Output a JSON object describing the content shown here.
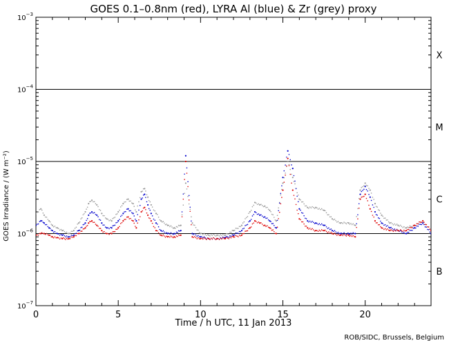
{
  "chart_data": {
    "type": "scatter",
    "title": "GOES 0.1–0.8nm (red), LYRA Al (blue) & Zr (grey) proxy",
    "xlabel": "Time / h UTC, 11 Jan 2013",
    "ylabel": "GOES Irradiance / (W m⁻²)",
    "credit": "ROB/SIDC, Brussels, Belgium",
    "xlim": [
      0,
      24
    ],
    "ylim": [
      1e-07,
      0.001
    ],
    "yscale": "log",
    "x_ticks": [
      0,
      5,
      10,
      15,
      20
    ],
    "x_tick_labels": [
      "0",
      "5",
      "10",
      "15",
      "20"
    ],
    "y_ticks": [
      1e-07,
      1e-06,
      1e-05,
      0.0001,
      0.001
    ],
    "y_tick_labels": [
      {
        "base": "10",
        "exp": "−7"
      },
      {
        "base": "10",
        "exp": "−6"
      },
      {
        "base": "10",
        "exp": "−5"
      },
      {
        "base": "10",
        "exp": "−4"
      },
      {
        "base": "10",
        "exp": "−3"
      }
    ],
    "flare_levels": [
      1e-06,
      1e-05,
      0.0001
    ],
    "flare_classes": [
      {
        "label": "X",
        "y": 0.0003
      },
      {
        "label": "M",
        "y": 3e-05
      },
      {
        "label": "C",
        "y": 3e-06
      },
      {
        "label": "B",
        "y": 3e-07
      }
    ],
    "series": [
      {
        "name": "Zr",
        "color": "#999999",
        "x": [
          0,
          0.3,
          0.5,
          0.8,
          1.0,
          1.3,
          1.6,
          2.0,
          2.3,
          2.6,
          3.0,
          3.2,
          3.4,
          3.7,
          4.0,
          4.3,
          4.6,
          5.0,
          5.3,
          5.6,
          5.9,
          6.1,
          6.4,
          6.6,
          6.8,
          7.0,
          7.3,
          7.6,
          8.0,
          8.4,
          8.8,
          9.1,
          9.5,
          10.0,
          10.5,
          11.0,
          11.5,
          12.0,
          12.5,
          13.0,
          13.3,
          13.6,
          13.9,
          14.2,
          14.6,
          15.0,
          15.3,
          15.6,
          16.0,
          16.5,
          17.0,
          17.5,
          18.0,
          18.5,
          19.0,
          19.4,
          19.7,
          20.0,
          20.3,
          20.6,
          21.0,
          21.5,
          22.0,
          22.5,
          23.0,
          23.5,
          24.0
        ],
        "y": [
          1.9e-06,
          2.2e-06,
          1.8e-06,
          1.5e-06,
          1.3e-06,
          1.2e-06,
          1.1e-06,
          1e-06,
          1.1e-06,
          1.4e-06,
          2e-06,
          2.6e-06,
          2.9e-06,
          2.5e-06,
          1.9e-06,
          1.6e-06,
          1.5e-06,
          2e-06,
          2.6e-06,
          3e-06,
          2.6e-06,
          2e-06,
          3.8e-06,
          4.2e-06,
          3.2e-06,
          2.5e-06,
          1.9e-06,
          1.5e-06,
          1.3e-06,
          1.2e-06,
          1.3e-06,
          5e-06,
          1.4e-06,
          1e-06,
          9.5e-07,
          9.5e-07,
          9.5e-07,
          1.1e-06,
          1.3e-06,
          2e-06,
          2.7e-06,
          2.5e-06,
          2.4e-06,
          2.1e-06,
          1.5e-06,
          5e-06,
          1e-05,
          6e-06,
          3e-06,
          2.3e-06,
          2.3e-06,
          2.1e-06,
          1.6e-06,
          1.4e-06,
          1.4e-06,
          1.3e-06,
          4e-06,
          5e-06,
          4e-06,
          2.6e-06,
          1.8e-06,
          1.4e-06,
          1.3e-06,
          1.2e-06,
          1.3e-06,
          1.5e-06,
          1.1e-06
        ]
      },
      {
        "name": "Al",
        "color": "#0000cc",
        "x": [
          0,
          0.3,
          0.5,
          0.8,
          1.0,
          1.3,
          1.6,
          2.0,
          2.3,
          2.6,
          3.0,
          3.2,
          3.4,
          3.7,
          4.0,
          4.3,
          4.6,
          5.0,
          5.3,
          5.6,
          5.9,
          6.1,
          6.4,
          6.6,
          6.8,
          7.0,
          7.3,
          7.6,
          8.0,
          8.4,
          8.8,
          9.1,
          9.5,
          10.0,
          10.5,
          11.0,
          11.5,
          12.0,
          12.5,
          13.0,
          13.3,
          13.6,
          13.9,
          14.2,
          14.6,
          15.0,
          15.3,
          15.6,
          16.0,
          16.5,
          17.0,
          17.5,
          18.0,
          18.5,
          19.0,
          19.4,
          19.7,
          20.0,
          20.3,
          20.6,
          21.0,
          21.5,
          22.0,
          22.5,
          23.0,
          23.5,
          24.0
        ],
        "y": [
          1.3e-06,
          1.5e-06,
          1.4e-06,
          1.2e-06,
          1.1e-06,
          1e-06,
          9.5e-07,
          9e-07,
          9.5e-07,
          1.1e-06,
          1.4e-06,
          1.8e-06,
          2e-06,
          1.8e-06,
          1.4e-06,
          1.2e-06,
          1.2e-06,
          1.5e-06,
          1.9e-06,
          2.2e-06,
          1.9e-06,
          1.5e-06,
          3e-06,
          3.5e-06,
          2.5e-06,
          1.9e-06,
          1.4e-06,
          1.1e-06,
          1e-06,
          1e-06,
          1.1e-06,
          1.2e-05,
          1e-06,
          9e-07,
          8.5e-07,
          8.5e-07,
          8.8e-07,
          9.5e-07,
          1.1e-06,
          1.5e-06,
          2e-06,
          1.8e-06,
          1.7e-06,
          1.5e-06,
          1.2e-06,
          6e-06,
          1.4e-05,
          8e-06,
          2.2e-06,
          1.5e-06,
          1.4e-06,
          1.3e-06,
          1.1e-06,
          1e-06,
          1e-06,
          1e-06,
          3.5e-06,
          4.5e-06,
          3.2e-06,
          2e-06,
          1.4e-06,
          1.2e-06,
          1.1e-06,
          1e-06,
          1.2e-06,
          1.4e-06,
          1e-06
        ]
      },
      {
        "name": "GOES",
        "color": "#dd0000",
        "x": [
          0,
          0.3,
          0.5,
          0.8,
          1.0,
          1.3,
          1.6,
          2.0,
          2.3,
          2.6,
          3.0,
          3.2,
          3.4,
          3.7,
          4.0,
          4.3,
          4.6,
          5.0,
          5.3,
          5.6,
          5.9,
          6.1,
          6.4,
          6.6,
          6.8,
          7.0,
          7.3,
          7.6,
          8.0,
          8.4,
          8.8,
          9.1,
          9.5,
          10.0,
          10.5,
          11.0,
          11.5,
          12.0,
          12.5,
          13.0,
          13.3,
          13.6,
          13.9,
          14.2,
          14.6,
          15.0,
          15.3,
          15.6,
          16.0,
          16.5,
          17.0,
          17.5,
          18.0,
          18.5,
          19.0,
          19.4,
          19.7,
          20.0,
          20.3,
          20.6,
          21.0,
          21.5,
          22.0,
          22.5,
          23.0,
          23.5,
          24.0
        ],
        "y": [
          9.5e-07,
          1e-06,
          1e-06,
          9.5e-07,
          9e-07,
          8.8e-07,
          8.5e-07,
          8.5e-07,
          9e-07,
          1e-06,
          1.2e-06,
          1.4e-06,
          1.5e-06,
          1.3e-06,
          1.1e-06,
          1e-06,
          1e-06,
          1.2e-06,
          1.5e-06,
          1.7e-06,
          1.5e-06,
          1.2e-06,
          2e-06,
          2.3e-06,
          1.8e-06,
          1.5e-06,
          1.1e-06,
          9.5e-07,
          9e-07,
          9e-07,
          9.5e-07,
          1e-05,
          9e-07,
          8.5e-07,
          8.5e-07,
          8.5e-07,
          8.5e-07,
          9e-07,
          9.5e-07,
          1.2e-06,
          1.5e-06,
          1.4e-06,
          1.3e-06,
          1.2e-06,
          1e-06,
          4e-06,
          1.1e-05,
          4e-06,
          1.6e-06,
          1.2e-06,
          1.1e-06,
          1.1e-06,
          1e-06,
          9.5e-07,
          9.5e-07,
          9e-07,
          3e-06,
          3.5e-06,
          2.2e-06,
          1.5e-06,
          1.2e-06,
          1.1e-06,
          1.1e-06,
          1.1e-06,
          1.3e-06,
          1.5e-06,
          1.1e-06
        ]
      }
    ]
  }
}
